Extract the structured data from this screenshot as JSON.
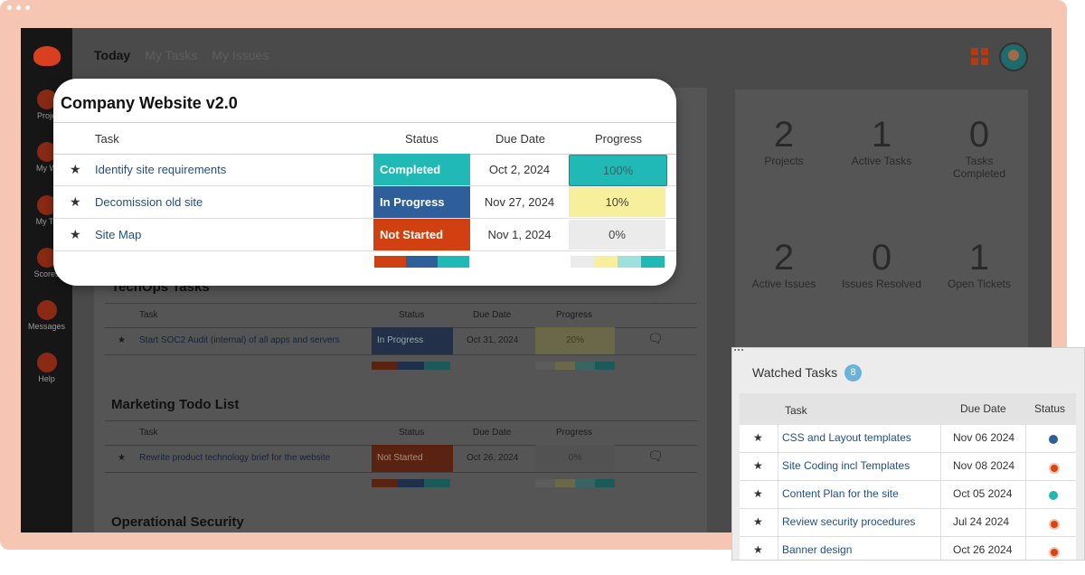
{
  "top_tabs": [
    "Today",
    "My Tasks",
    "My Issues"
  ],
  "sidebar": [
    {
      "label": "Proje",
      "icon": "projects-icon"
    },
    {
      "label": "My W",
      "icon": "check-icon"
    },
    {
      "label": "My Te",
      "icon": "user-icon"
    },
    {
      "label": "Scores",
      "icon": "scorecard-icon"
    },
    {
      "label": "Messages",
      "icon": "messages-icon"
    },
    {
      "label": "Help",
      "icon": "help-icon"
    }
  ],
  "stats": [
    {
      "num": "2",
      "label": "Projects"
    },
    {
      "num": "1",
      "label": "Active Tasks"
    },
    {
      "num": "0",
      "label": "Tasks Completed"
    },
    {
      "num": "2",
      "label": "Active Issues"
    },
    {
      "num": "0",
      "label": "Issues Resolved"
    },
    {
      "num": "1",
      "label": "Open Tickets"
    }
  ],
  "card": {
    "title": "Company Website v2.0",
    "headers": {
      "task": "Task",
      "status": "Status",
      "due": "Due Date",
      "progress": "Progress"
    },
    "rows": [
      {
        "task": "Identify site requirements",
        "status": "Completed",
        "due": "Oct 2, 2024",
        "progress": "100%"
      },
      {
        "task": "Decomission old site",
        "status": "In Progress",
        "due": "Nov 27, 2024",
        "progress": "10%"
      },
      {
        "task": "Site Map",
        "status": "Not Started",
        "due": "Nov 1, 2024",
        "progress": "0%"
      }
    ]
  },
  "bg_projects": [
    {
      "title": "TechOps Tasks",
      "headers": {
        "task": "Task",
        "status": "Status",
        "due": "Due Date",
        "progress": "Progress"
      },
      "row": {
        "task": "Start SOC2 Audit (internal) of all apps and servers",
        "status": "In Progress",
        "due": "Oct 31, 2024",
        "progress": "20%"
      }
    },
    {
      "title": "Marketing Todo List",
      "headers": {
        "task": "Task",
        "status": "Status",
        "due": "Due Date",
        "progress": "Progress"
      },
      "row": {
        "task": "Rewrite product technology brief for the website",
        "status": "Not Started",
        "due": "Oct 26, 2024",
        "progress": "0%"
      }
    },
    {
      "title": "Operational Security"
    }
  ],
  "watched": {
    "title": "Watched Tasks",
    "count": "8",
    "headers": {
      "task": "Task",
      "due": "Due Date",
      "status": "Status"
    },
    "rows": [
      {
        "task": "CSS and Layout templates",
        "due": "Nov 06 2024",
        "color": "#2e5f9a"
      },
      {
        "task": "Site Coding incl Templates",
        "due": "Nov 08 2024",
        "color": "#d64513"
      },
      {
        "task": "Content Plan for the site",
        "due": "Oct 05 2024",
        "color": "#21b8b0"
      },
      {
        "task": "Review security procedures",
        "due": "Jul 24 2024",
        "color": "#d64513"
      },
      {
        "task": "Banner design",
        "due": "Oct 26 2024",
        "color": "#d64513"
      }
    ]
  },
  "colors": {
    "completed": "#20b9b5",
    "in_progress": "#2e5f9a",
    "not_started": "#d14010",
    "progress_full": "#20b9b5",
    "progress_low": "#f8ef9c",
    "progress_empty": "#ebebeb"
  }
}
